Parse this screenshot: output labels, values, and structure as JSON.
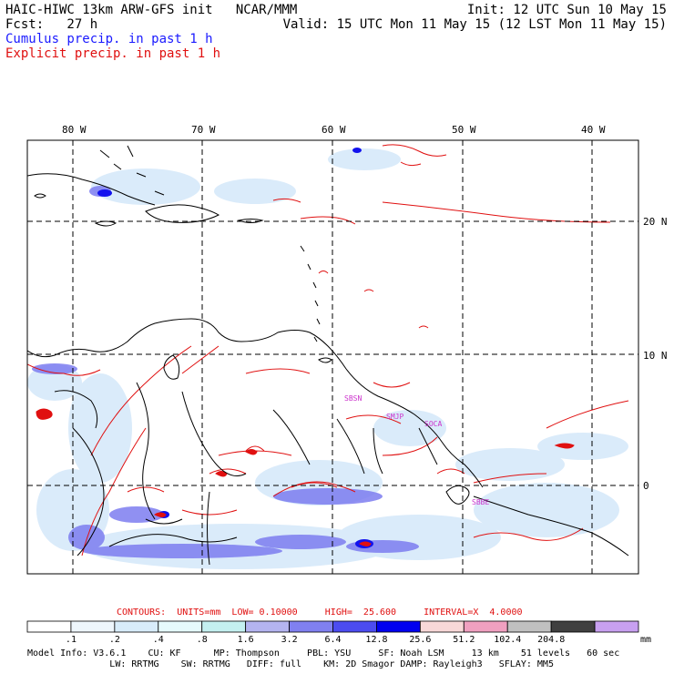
{
  "header": {
    "left_line1": "HAIC-HIWC 13km ARW-GFS init   NCAR/MMM",
    "left_line2": "Fcst:   27 h",
    "right_line1": "Init: 12 UTC Sun 10 May 15",
    "right_line2": "Valid: 15 UTC Mon 11 May 15 (12 LST Mon 11 May 15)",
    "legend_cumulus": "Cumulus precip. in past 1 h",
    "legend_explicit": "Explicit precip. in past 1 h"
  },
  "map": {
    "lon_labels": [
      "80 W",
      "70 W",
      "60 W",
      "50 W",
      "40 W"
    ],
    "lat_labels": [
      "20 N",
      "10 N",
      "0"
    ],
    "cell_labels": [
      "SBSN",
      "SMJP",
      "SOCA",
      "SBBE"
    ],
    "colors": {
      "land_outline": "#000000",
      "explicit": "#e01010",
      "cumulus_light": "#cfe6fa",
      "cumulus_mid": "#6e6ef0",
      "cumulus_dark": "#1010ee",
      "label_magenta": "#cc33cc"
    }
  },
  "contours": {
    "label": "CONTOURS:  UNITS=mm  LOW= 0.10000     HIGH=  25.600     INTERVAL=X  4.0000"
  },
  "colorbar": {
    "colors": [
      "#ffffff",
      "#eef6fc",
      "#d8ecfa",
      "#e6fafc",
      "#c4f0f0",
      "#b4b4f0",
      "#8080f0",
      "#4c4cf0",
      "#0000f0",
      "#f8d8d8",
      "#f0a0c0",
      "#c0c0c0",
      "#404040",
      "#c8a0f0"
    ],
    "labels": [
      ".1",
      ".2",
      ".4",
      ".8",
      "1.6",
      "3.2",
      "6.4",
      "12.8",
      "25.6",
      "51.2",
      "102.4",
      "204.8"
    ],
    "unit": "mm"
  },
  "model_info": {
    "line1": "Model Info: V3.6.1    CU: KF      MP: Thompson     PBL: YSU     SF: Noah LSM     13 km    51 levels   60 sec",
    "line2": "               LW: RRTMG    SW: RRTMG   DIFF: full    KM: 2D Smagor DAMP: Rayleigh3   SFLAY: MM5"
  }
}
